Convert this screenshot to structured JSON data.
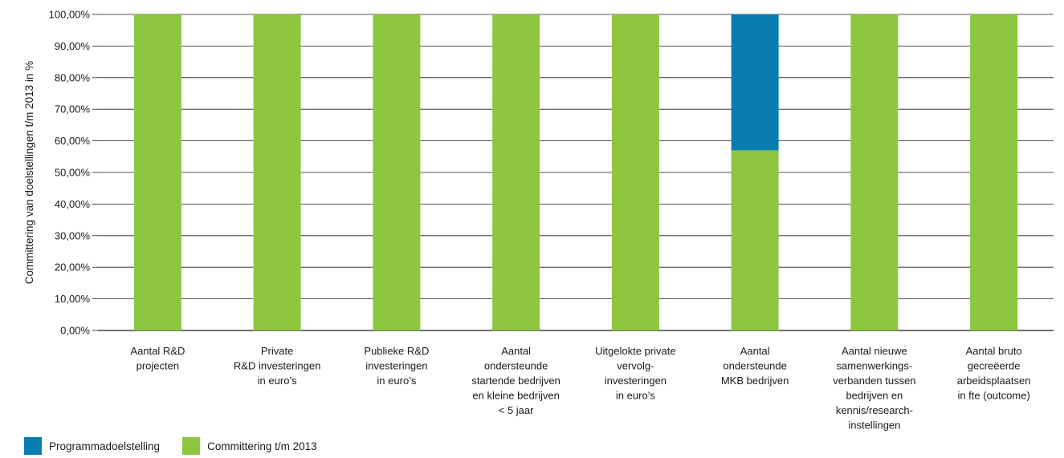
{
  "chart_data": {
    "type": "bar",
    "stacked": true,
    "ylabel": "Committering van doelstellingen t/m 2013 in %",
    "xlabel": "",
    "ylim": [
      0,
      100
    ],
    "y_ticks": [
      "0,00%",
      "10,00%",
      "20,00%",
      "30,00%",
      "40,00%",
      "50,00%",
      "60,00%",
      "70,00%",
      "80,00%",
      "90,00%",
      "100,00%"
    ],
    "grid": "horizontal",
    "legend_position": "bottom-left",
    "categories": [
      [
        "Aantal R&D",
        "projecten"
      ],
      [
        "Private",
        "R&D investeringen",
        "in euro’s"
      ],
      [
        "Publieke R&D",
        "investeringen",
        "in euro’s"
      ],
      [
        "Aantal",
        "ondersteunde",
        "startende bedrijven",
        "en kleine bedrijven",
        "< 5 jaar"
      ],
      [
        "Uitgelokte private",
        "vervolg-",
        "investeringen",
        "in euro’s"
      ],
      [
        "Aantal",
        "ondersteunde",
        "MKB bedrijven"
      ],
      [
        "Aantal nieuwe",
        "samenwerkings-",
        "verbanden tussen",
        "bedrijven en",
        "kennis/research-",
        "instellingen"
      ],
      [
        "Aantal bruto",
        "gecreëerde",
        "arbeidsplaatsen",
        "in fte (outcome)"
      ]
    ],
    "series": [
      {
        "name": "Committering t/m 2013",
        "color": "#8dc63f",
        "values": [
          100,
          100,
          100,
          100,
          100,
          57,
          100,
          100
        ]
      },
      {
        "name": "Programmadoelstelling",
        "color": "#0a7db0",
        "values": [
          0,
          0,
          0,
          0,
          0,
          43,
          0,
          0
        ]
      }
    ]
  },
  "legend": {
    "items": [
      {
        "label": "Programmadoelstelling",
        "color": "#0a7db0"
      },
      {
        "label": "Committering t/m 2013",
        "color": "#8dc63f"
      }
    ]
  }
}
